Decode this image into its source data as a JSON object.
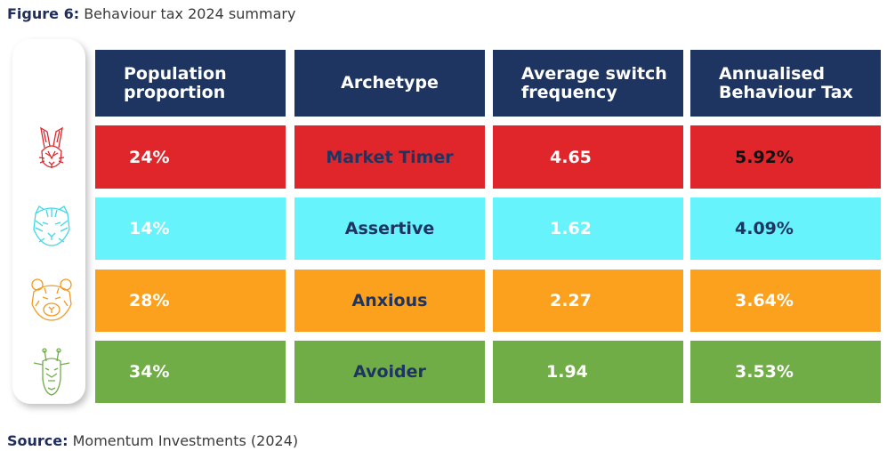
{
  "figure": {
    "label": "Figure 6:",
    "title": "Behaviour tax 2024 summary"
  },
  "source": {
    "label": "Source:",
    "text": "Momentum Investments (2024)"
  },
  "headers": {
    "population": "Population proportion",
    "archetype": "Archetype",
    "frequency": "Average switch frequency",
    "tax": "Annualised Behaviour Tax"
  },
  "rows": [
    {
      "icon": "rabbit-icon",
      "population": "24%",
      "archetype": "Market Timer",
      "frequency": "4.65",
      "tax": "5.92%",
      "color": "#e0262b"
    },
    {
      "icon": "tiger-icon",
      "population": "14%",
      "archetype": "Assertive",
      "frequency": "1.62",
      "tax": "4.09%",
      "color": "#67f3fb"
    },
    {
      "icon": "bear-icon",
      "population": "28%",
      "archetype": "Anxious",
      "frequency": "2.27",
      "tax": "3.64%",
      "color": "#fba11e"
    },
    {
      "icon": "giraffe-icon",
      "population": "34%",
      "archetype": "Avoider",
      "frequency": "1.94",
      "tax": "3.53%",
      "color": "#70ad47"
    }
  ]
}
